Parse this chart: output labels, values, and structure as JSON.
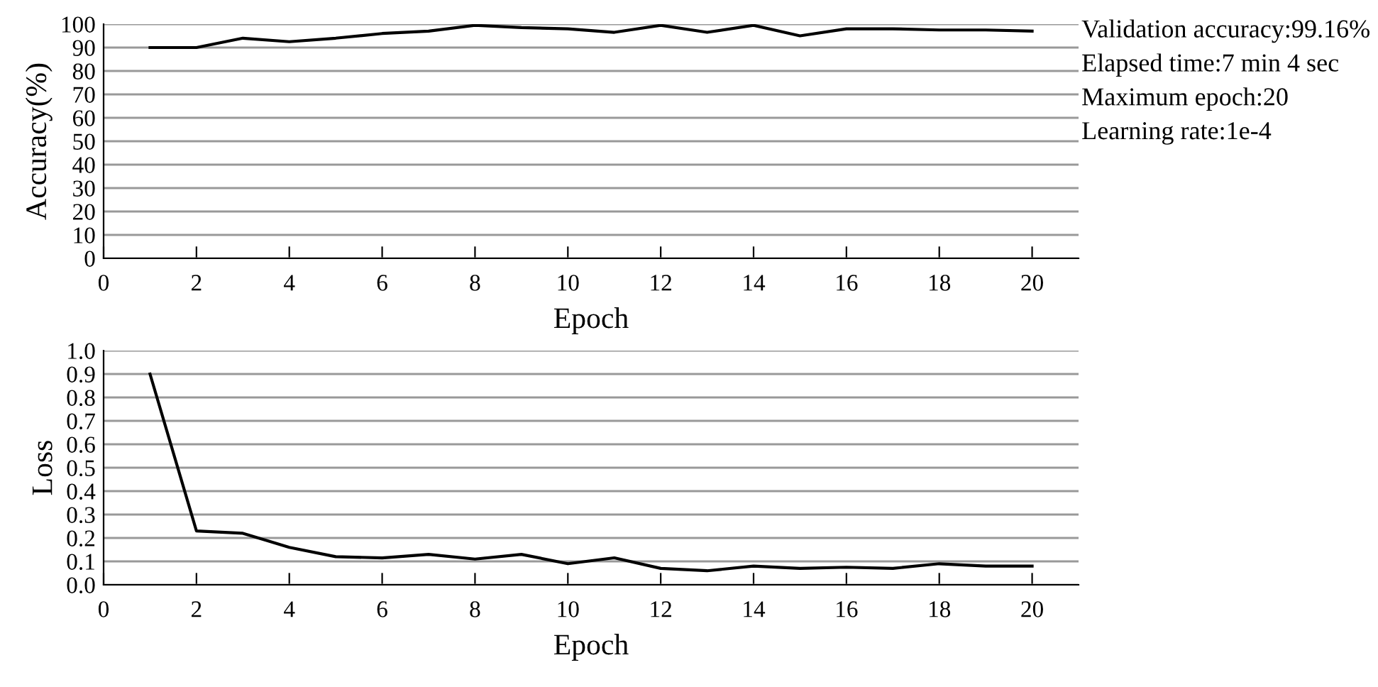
{
  "chart_data": [
    {
      "type": "line",
      "xlabel": "Epoch",
      "ylabel": "Accuracy(%)",
      "x": [
        1,
        2,
        3,
        4,
        5,
        6,
        7,
        8,
        9,
        10,
        11,
        12,
        13,
        14,
        15,
        16,
        17,
        18,
        19,
        20
      ],
      "series": [
        {
          "color": "#000000",
          "values": [
            90,
            90,
            94,
            92.5,
            94,
            96,
            97,
            99.5,
            98.5,
            98,
            96.5,
            99.5,
            96.5,
            99.5,
            95,
            98,
            98,
            97.5,
            97.5,
            97
          ]
        }
      ],
      "xlim": [
        0,
        21
      ],
      "xticks": [
        0,
        2,
        4,
        6,
        8,
        10,
        12,
        14,
        16,
        18,
        20
      ],
      "ylim": [
        0,
        100
      ],
      "yticks": [
        0,
        10,
        20,
        30,
        40,
        50,
        60,
        70,
        80,
        90,
        100
      ],
      "grid": "y",
      "marker": "none",
      "line_style": "solid",
      "annotations": [
        "Validation accuracy:99.16%",
        "Elapsed time:7 min 4 sec",
        "Maximum epoch:20",
        "Learning rate:1e-4"
      ]
    },
    {
      "type": "line",
      "xlabel": "Epoch",
      "ylabel": "Loss",
      "x": [
        1,
        2,
        3,
        4,
        5,
        6,
        7,
        8,
        9,
        10,
        11,
        12,
        13,
        14,
        15,
        16,
        17,
        18,
        19,
        20
      ],
      "series": [
        {
          "color": "#000000",
          "values": [
            0.9,
            0.23,
            0.22,
            0.16,
            0.12,
            0.115,
            0.13,
            0.11,
            0.13,
            0.09,
            0.115,
            0.07,
            0.06,
            0.08,
            0.07,
            0.075,
            0.07,
            0.09,
            0.08,
            0.08
          ]
        }
      ],
      "xlim": [
        0,
        21
      ],
      "xticks": [
        0,
        2,
        4,
        6,
        8,
        10,
        12,
        14,
        16,
        18,
        20
      ],
      "ylim": [
        0,
        1.0
      ],
      "yticks": [
        {
          "value": 0,
          "label": "0.0"
        },
        {
          "value": 0.1,
          "label": "0.1"
        },
        {
          "value": 0.2,
          "label": "0.2"
        },
        {
          "value": 0.3,
          "label": "0.3"
        },
        {
          "value": 0.4,
          "label": "0.4"
        },
        {
          "value": 0.5,
          "label": "0.5"
        },
        {
          "value": 0.6,
          "label": "0.6"
        },
        {
          "value": 0.7,
          "label": "0.7"
        },
        {
          "value": 0.8,
          "label": "0.8"
        },
        {
          "value": 0.9,
          "label": "0.9"
        },
        {
          "value": 1.0,
          "label": "1.0"
        }
      ],
      "grid": "y",
      "marker": "none",
      "line_style": "solid"
    }
  ]
}
